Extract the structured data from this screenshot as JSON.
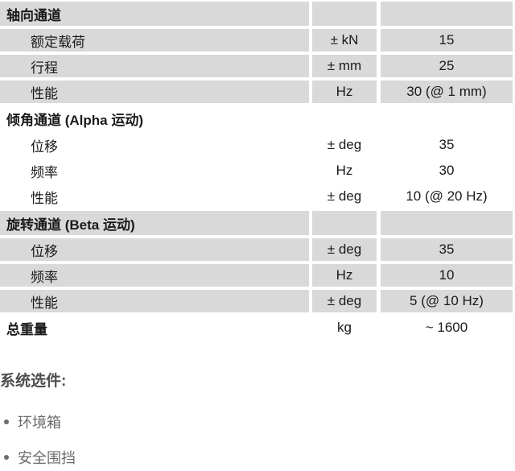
{
  "table": {
    "sections": [
      {
        "header": "轴向通道",
        "shaded": true,
        "rows": [
          {
            "label": "额定载荷",
            "unit": "± kN",
            "value": "15"
          },
          {
            "label": "行程",
            "unit": "± mm",
            "value": "25"
          },
          {
            "label": "性能",
            "unit": "Hz",
            "value": "30 (@ 1 mm)"
          }
        ]
      },
      {
        "header": "倾角通道 (Alpha 运动)",
        "shaded": false,
        "rows": [
          {
            "label": "位移",
            "unit": "± deg",
            "value": "35"
          },
          {
            "label": "频率",
            "unit": "Hz",
            "value": "30"
          },
          {
            "label": "性能",
            "unit": "± deg",
            "value": "10 (@ 20 Hz)"
          }
        ]
      },
      {
        "header": "旋转通道 (Beta 运动)",
        "shaded": true,
        "rows": [
          {
            "label": "位移",
            "unit": "± deg",
            "value": "35"
          },
          {
            "label": "频率",
            "unit": "Hz",
            "value": "10"
          },
          {
            "label": "性能",
            "unit": "± deg",
            "value": "5 (@ 10 Hz)"
          }
        ]
      }
    ],
    "total_row": {
      "label": "总重量",
      "unit": "kg",
      "value": "~ 1600"
    }
  },
  "options": {
    "title": "系统选件:",
    "items": [
      "环境箱",
      "安全围挡"
    ]
  },
  "colors": {
    "row_shaded": "#d9d9d9",
    "table_text": "#1a1a1a",
    "options_title": "#4d4d4d",
    "options_text": "#6b6b6b"
  }
}
